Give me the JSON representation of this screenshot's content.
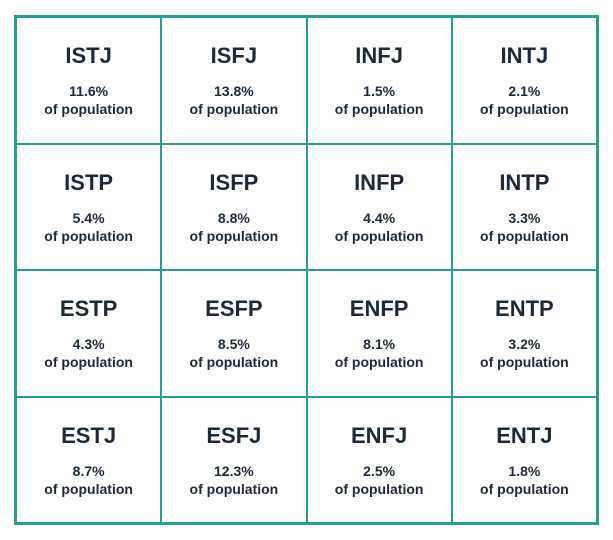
{
  "layout": {
    "rows": 4,
    "cols": 4,
    "border_color": "#2a9d8f",
    "background_color": "#ffffff",
    "text_color": "#1a2a3a",
    "type_fontsize": 22,
    "stat_fontsize": 14,
    "label_fontsize": 14
  },
  "population_label": "of population",
  "types": [
    {
      "code": "ISTJ",
      "pct": "11.6%"
    },
    {
      "code": "ISFJ",
      "pct": "13.8%"
    },
    {
      "code": "INFJ",
      "pct": "1.5%"
    },
    {
      "code": "INTJ",
      "pct": "2.1%"
    },
    {
      "code": "ISTP",
      "pct": "5.4%"
    },
    {
      "code": "ISFP",
      "pct": "8.8%"
    },
    {
      "code": "INFP",
      "pct": "4.4%"
    },
    {
      "code": "INTP",
      "pct": "3.3%"
    },
    {
      "code": "ESTP",
      "pct": "4.3%"
    },
    {
      "code": "ESFP",
      "pct": "8.5%"
    },
    {
      "code": "ENFP",
      "pct": "8.1%"
    },
    {
      "code": "ENTP",
      "pct": "3.2%"
    },
    {
      "code": "ESTJ",
      "pct": "8.7%"
    },
    {
      "code": "ESFJ",
      "pct": "12.3%"
    },
    {
      "code": "ENFJ",
      "pct": "2.5%"
    },
    {
      "code": "ENTJ",
      "pct": "1.8%"
    }
  ]
}
